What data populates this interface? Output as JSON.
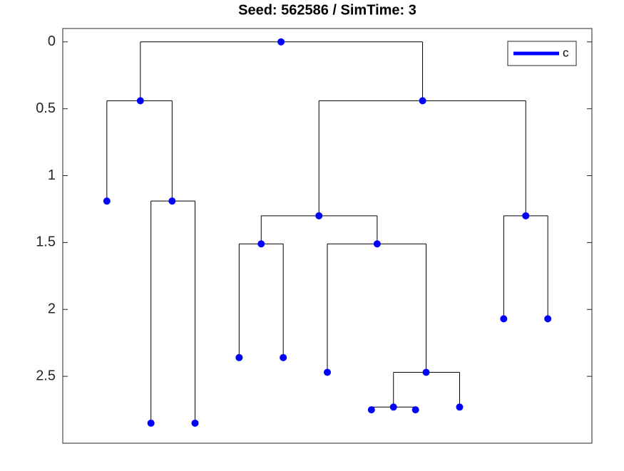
{
  "chart_data": {
    "type": "tree",
    "title": "Seed: 562586 / SimTime: 3",
    "series": [
      {
        "name": "c",
        "color": "#0000ff"
      }
    ],
    "x": [
      4.95,
      1.76,
      8.16,
      1,
      2.48,
      2,
      3,
      5.81,
      10.5,
      4.5,
      7.13,
      4,
      5,
      6,
      8.24,
      7.5,
      9,
      7,
      8,
      10,
      11
    ],
    "y": [
      0,
      0.44,
      0.44,
      1.19,
      1.19,
      2.85,
      2.85,
      1.3,
      1.3,
      1.51,
      1.51,
      2.36,
      2.36,
      2.47,
      2.47,
      2.73,
      2.73,
      2.75,
      2.75,
      2.07,
      2.07
    ],
    "parent": [
      null,
      0,
      0,
      1,
      1,
      4,
      4,
      2,
      2,
      7,
      7,
      9,
      9,
      10,
      10,
      14,
      14,
      15,
      15,
      8,
      8
    ],
    "edge_color": "#000000",
    "xlim": [
      0,
      12
    ],
    "ylim": [
      -0.1,
      3
    ],
    "y_reversed": true,
    "yticks": [
      0,
      0.5,
      1,
      1.5,
      2,
      2.5
    ],
    "grid": false,
    "legend": "upper right"
  }
}
